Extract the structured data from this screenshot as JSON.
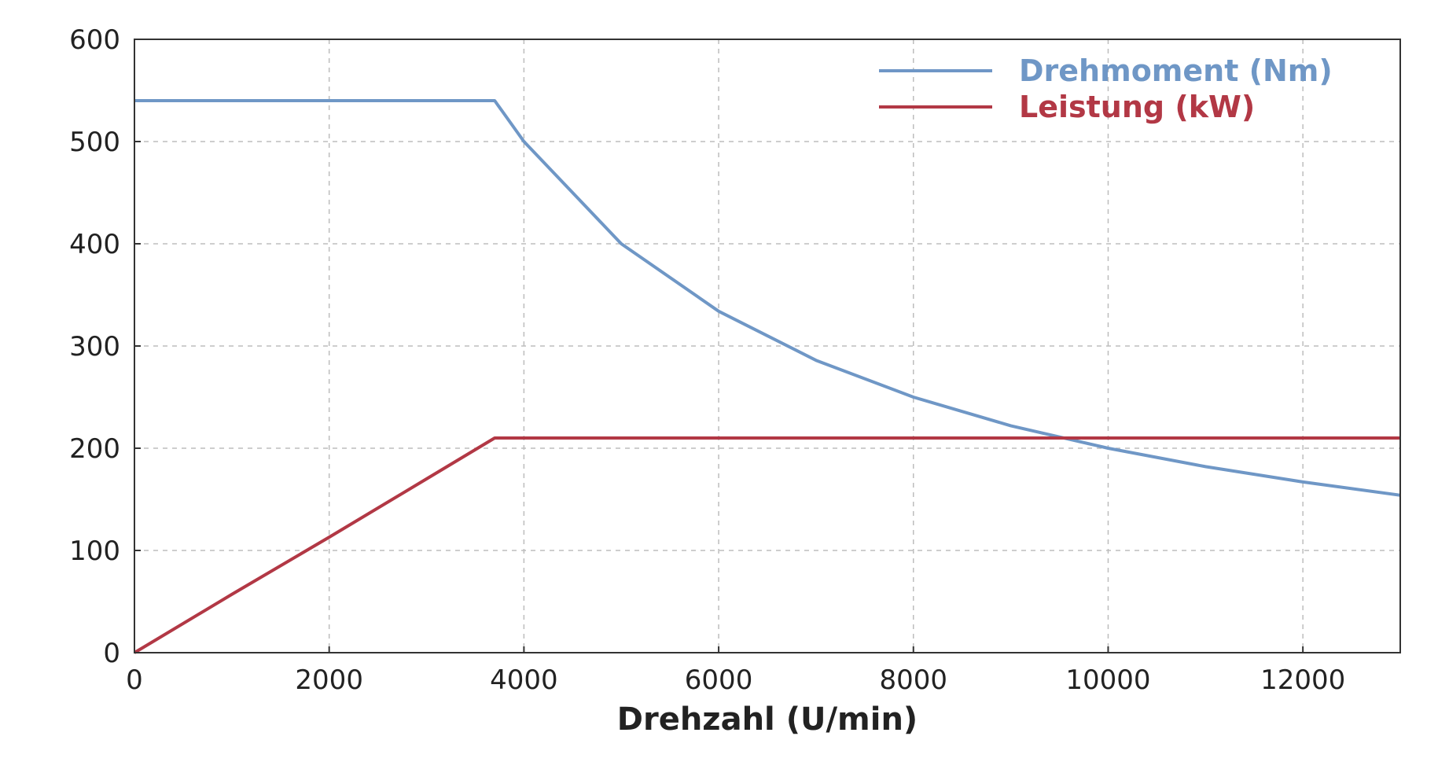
{
  "chart_data": {
    "type": "line",
    "title": "",
    "xlabel": "Drehzahl (U/min)",
    "ylabel": "",
    "xlim": [
      0,
      13000
    ],
    "ylim": [
      0,
      600
    ],
    "x_ticks": [
      0,
      2000,
      4000,
      6000,
      8000,
      10000,
      12000
    ],
    "y_ticks": [
      0,
      100,
      200,
      300,
      400,
      500,
      600
    ],
    "grid": true,
    "legend_position": "top-right",
    "series": [
      {
        "name": "Drehmoment (Nm)",
        "color": "#6f97c6",
        "x": [
          0,
          1000,
          2000,
          3000,
          3700,
          4000,
          4500,
          5000,
          6000,
          7000,
          8000,
          9000,
          10000,
          11000,
          12000,
          13000
        ],
        "y": [
          540,
          540,
          540,
          540,
          540,
          500,
          450,
          400,
          334,
          286,
          250,
          222,
          200,
          182,
          167,
          154
        ]
      },
      {
        "name": "Leistung (kW)",
        "color": "#b23845",
        "x": [
          0,
          1000,
          2000,
          3000,
          3700,
          4000,
          6000,
          8000,
          10000,
          12000,
          13000
        ],
        "y": [
          0,
          57,
          113,
          170,
          210,
          210,
          210,
          210,
          210,
          210,
          210
        ]
      }
    ]
  }
}
